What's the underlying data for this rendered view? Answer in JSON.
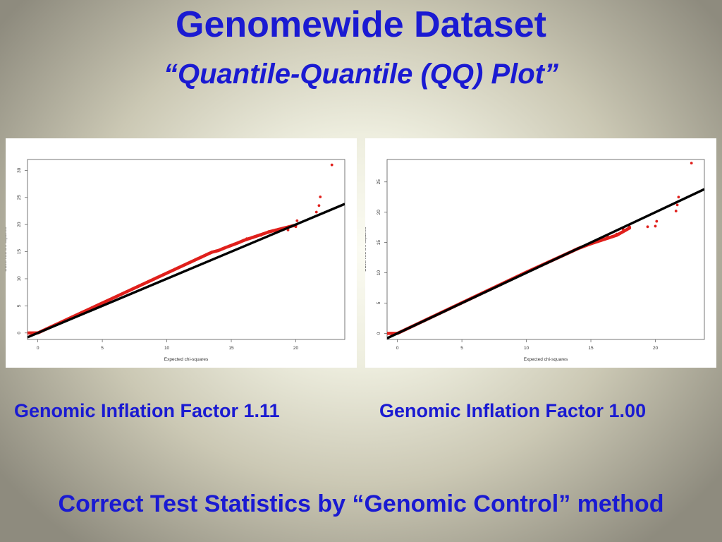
{
  "slide": {
    "title": "Genomewide Dataset",
    "subtitle": "“Quantile-Quantile (QQ) Plot”",
    "caption_left": "Genomic Inflation Factor 1.11",
    "caption_right": "Genomic Inflation Factor 1.00",
    "footer": "Correct Test Statistics by “Genomic Control” method"
  },
  "colors": {
    "text": "#1a1ad2",
    "points": "#e0201c",
    "reference_line": "#000000"
  },
  "chart_data": [
    {
      "type": "scatter",
      "xlabel": "Expected chi-squares",
      "ylabel": "Observed chi-squares",
      "xlim": [
        -0.8,
        23.8
      ],
      "ylim": [
        -1.2,
        32.0
      ],
      "xticks": [
        "0",
        "5",
        "10",
        "15",
        "20"
      ],
      "yticks": [
        "0",
        "5",
        "10",
        "15",
        "20",
        "25",
        "30"
      ],
      "reference_line": {
        "slope": 1,
        "intercept": 0
      },
      "dense_trend": [
        [
          0,
          0
        ],
        [
          13.5,
          14.9
        ],
        [
          14,
          15.2
        ],
        [
          14.5,
          15.7
        ],
        [
          15.5,
          16.6
        ],
        [
          16,
          17.1
        ],
        [
          18,
          18.7
        ],
        [
          20,
          19.9
        ]
      ],
      "tail_points": [
        [
          16.2,
          17.4
        ],
        [
          16.7,
          17.6
        ],
        [
          17.3,
          18.0
        ],
        [
          17.9,
          18.7
        ],
        [
          19.4,
          19.0
        ],
        [
          20.0,
          19.6
        ],
        [
          20.1,
          20.7
        ],
        [
          21.6,
          22.3
        ],
        [
          21.8,
          23.5
        ],
        [
          21.9,
          25.1
        ],
        [
          22.8,
          31.0
        ]
      ]
    },
    {
      "type": "scatter",
      "xlabel": "Expected chi-squares",
      "ylabel": "Observed chi-squares",
      "xlim": [
        -0.8,
        23.8
      ],
      "ylim": [
        -1.0,
        28.7
      ],
      "xticks": [
        "0",
        "5",
        "10",
        "15",
        "20"
      ],
      "yticks": [
        "0",
        "5",
        "10",
        "15",
        "20",
        "25"
      ],
      "reference_line": {
        "slope": 1,
        "intercept": 0
      },
      "dense_trend": [
        [
          0,
          0
        ],
        [
          10,
          10.1
        ],
        [
          13.5,
          13.5
        ],
        [
          14,
          14
        ],
        [
          15,
          14.8
        ],
        [
          17,
          16.2
        ],
        [
          18,
          17.4
        ]
      ],
      "tail_points": [
        [
          16.3,
          16.0
        ],
        [
          17.0,
          16.4
        ],
        [
          17.5,
          17.2
        ],
        [
          18.0,
          17.6
        ],
        [
          19.4,
          17.6
        ],
        [
          20.0,
          17.7
        ],
        [
          20.1,
          18.5
        ],
        [
          21.6,
          20.2
        ],
        [
          21.7,
          21.2
        ],
        [
          21.8,
          22.5
        ],
        [
          22.8,
          28.1
        ]
      ]
    }
  ]
}
